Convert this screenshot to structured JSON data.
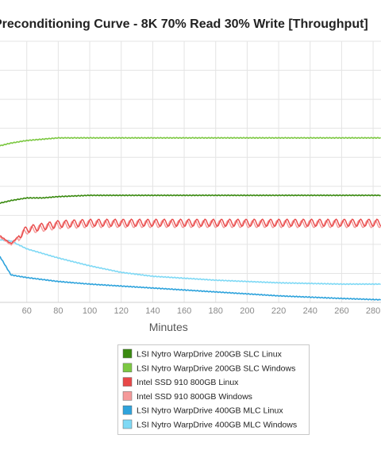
{
  "chart_data": {
    "type": "line",
    "title": "Preconditioning Curve - 8K 70% Read 30% Write [Throughput]",
    "xlabel": "Minutes",
    "x_ticks": [
      60,
      80,
      100,
      120,
      140,
      160,
      180,
      200,
      220,
      240,
      260,
      280
    ],
    "x_range": [
      43,
      285
    ],
    "grid": true,
    "legend_position": "bottom",
    "series": [
      {
        "name": "LSI Nytro WarpDrive 200GB SLC Linux",
        "color": "#3a8a10",
        "x": [
          43,
          50,
          60,
          70,
          80,
          100,
          140,
          200,
          285
        ],
        "rel_level": [
          0.38,
          0.39,
          0.4,
          0.4,
          0.405,
          0.41,
          0.41,
          0.41,
          0.41
        ]
      },
      {
        "name": "LSI Nytro WarpDrive 200GB SLC Windows",
        "color": "#7cc842",
        "x": [
          43,
          50,
          60,
          70,
          80,
          100,
          140,
          200,
          285
        ],
        "rel_level": [
          0.6,
          0.61,
          0.62,
          0.625,
          0.63,
          0.63,
          0.63,
          0.63,
          0.63
        ]
      },
      {
        "name": "Intel SSD 910 800GB Linux",
        "color": "#e84848",
        "x": [
          43,
          50,
          55,
          60,
          70,
          80,
          100,
          120,
          285
        ],
        "rel_level": [
          0.255,
          0.225,
          0.255,
          0.28,
          0.29,
          0.3,
          0.305,
          0.305,
          0.305
        ]
      },
      {
        "name": "Intel SSD 910 800GB Windows",
        "color": "#f59a9a",
        "x": [
          43,
          50,
          55,
          60,
          70,
          80,
          100,
          120,
          285
        ],
        "rel_level": [
          0.25,
          0.22,
          0.25,
          0.275,
          0.285,
          0.295,
          0.3,
          0.3,
          0.3
        ]
      },
      {
        "name": "LSI Nytro WarpDrive 400GB MLC Linux",
        "color": "#2ea3dc",
        "x": [
          43,
          50,
          60,
          80,
          100,
          140,
          180,
          220,
          260,
          285
        ],
        "rel_level": [
          0.175,
          0.105,
          0.095,
          0.08,
          0.07,
          0.055,
          0.04,
          0.025,
          0.015,
          0.01
        ]
      },
      {
        "name": "LSI Nytro WarpDrive 400GB MLC Windows",
        "color": "#7fd9f5",
        "x": [
          43,
          50,
          60,
          80,
          100,
          120,
          140,
          180,
          220,
          260,
          285
        ],
        "rel_level": [
          0.24,
          0.235,
          0.205,
          0.17,
          0.14,
          0.115,
          0.1,
          0.085,
          0.075,
          0.07,
          0.07
        ]
      }
    ]
  }
}
